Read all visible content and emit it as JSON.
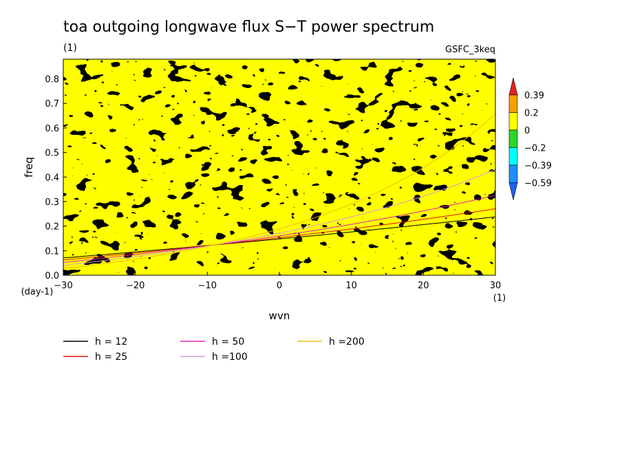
{
  "chart_data": {
    "type": "heatmap",
    "title": "toa outgoing longwave flux S−T power spectrum",
    "subtitle": "(1)",
    "source_label": "GSFC_3keq",
    "xlabel": "wvn",
    "ylabel": "freq",
    "x_unit": "(1)",
    "y_unit": "(day-1)",
    "xlim": [
      -30,
      30
    ],
    "ylim": [
      0,
      0.88
    ],
    "x_ticks": [
      "−30",
      "−20",
      "−10",
      "0",
      "10",
      "20",
      "30"
    ],
    "y_ticks": [
      "0.0",
      "0.1",
      "0.2",
      "0.3",
      "0.4",
      "0.5",
      "0.6",
      "0.7",
      "0.8"
    ],
    "field_note": "noisy anomaly field, values mostly between -0.2 and 0.2",
    "colorbar": {
      "levels": [
        "0.39",
        "0.2",
        "0",
        "−0.2",
        "−0.39",
        "−0.59"
      ],
      "colors": [
        "#e8201e",
        "#f5a000",
        "#ffff00",
        "#2ad62a",
        "#00ffff",
        "#1f8fff",
        "#1e60ff"
      ]
    },
    "dispersion_curves": [
      {
        "name": "h = 12",
        "h": 12,
        "color": "#000000"
      },
      {
        "name": "h = 25",
        "h": 25,
        "color": "#e01010"
      },
      {
        "name": "h = 50",
        "h": 50,
        "color": "#e020b0"
      },
      {
        "name": "h =100",
        "h": 100,
        "color": "#d89ad8"
      },
      {
        "name": "h =200",
        "h": 200,
        "color": "#f0c000"
      }
    ]
  }
}
